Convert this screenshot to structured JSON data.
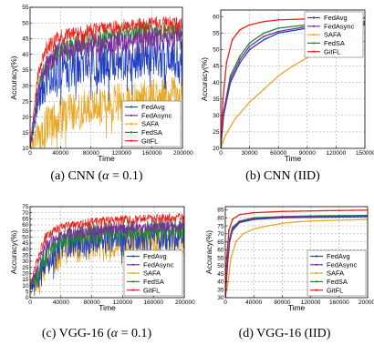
{
  "colors": {
    "FedAvg": "#1f3fbf",
    "FedAsync": "#7b2c9a",
    "SAFA": "#e5a828",
    "FedSA": "#1f8a2e",
    "GitFL": "#e8201a"
  },
  "chart_data": [
    {
      "type": "line",
      "caption": "(a) CNN (α = 0.1)",
      "caption_pre": "(a) CNN (",
      "caption_alpha": "α",
      "caption_post": " = 0.1)",
      "xlabel": "Time",
      "ylabel": "Accuracy(%)",
      "xlim": [
        0,
        200000
      ],
      "ylim": [
        10,
        55
      ],
      "xticks": [
        0,
        40000,
        80000,
        120000,
        160000,
        200000
      ],
      "xtick_labels": [
        "0",
        "40000",
        "80000",
        "120000",
        "160000",
        "200000"
      ],
      "yticks": [
        10,
        15,
        20,
        25,
        30,
        35,
        40,
        45,
        50,
        55
      ],
      "ytick_labels": [
        "10",
        "15",
        "20",
        "25",
        "30",
        "35",
        "40",
        "45",
        "50",
        "55"
      ],
      "legend_position": "lower-right",
      "noisy": true,
      "series": [
        {
          "name": "FedAvg",
          "x": [
            0,
            10000,
            20000,
            40000,
            80000,
            120000,
            160000,
            200000
          ],
          "y": [
            11,
            27,
            34,
            38,
            40,
            41,
            42,
            42
          ],
          "noise": 9
        },
        {
          "name": "FedAsync",
          "x": [
            0,
            10000,
            20000,
            40000,
            80000,
            120000,
            160000,
            200000
          ],
          "y": [
            11,
            30,
            38,
            43,
            45,
            46,
            47,
            47
          ],
          "noise": 5
        },
        {
          "name": "SAFA",
          "x": [
            0,
            10000,
            20000,
            40000,
            80000,
            120000,
            160000,
            200000
          ],
          "y": [
            11,
            16,
            20,
            24,
            26,
            28,
            29,
            30
          ],
          "noise": 9
        },
        {
          "name": "FedSA",
          "x": [
            0,
            10000,
            20000,
            40000,
            80000,
            120000,
            160000,
            200000
          ],
          "y": [
            11,
            30,
            38,
            43,
            46,
            48,
            49,
            49
          ],
          "noise": 4
        },
        {
          "name": "GitFL",
          "x": [
            0,
            10000,
            20000,
            40000,
            80000,
            120000,
            160000,
            200000
          ],
          "y": [
            11,
            34,
            43,
            47,
            49,
            50,
            51,
            51
          ],
          "noise": 3
        }
      ]
    },
    {
      "type": "line",
      "caption": "(b) CNN (IID)",
      "xlabel": "Time",
      "ylabel": "Accuracy(%)",
      "xlim": [
        0,
        150000
      ],
      "ylim": [
        20,
        62
      ],
      "xticks": [
        0,
        30000,
        60000,
        90000,
        120000,
        150000
      ],
      "xtick_labels": [
        "0",
        "30000",
        "60000",
        "90000",
        "120000",
        "150000"
      ],
      "yticks": [
        20,
        25,
        30,
        35,
        40,
        45,
        50,
        55,
        60
      ],
      "ytick_labels": [
        "20",
        "25",
        "30",
        "35",
        "40",
        "45",
        "50",
        "55",
        "60"
      ],
      "legend_position": "upper-right",
      "noisy": false,
      "series": [
        {
          "name": "FedAvg",
          "x": [
            0,
            3000,
            10000,
            20000,
            30000,
            45000,
            60000,
            90000,
            120000,
            150000
          ],
          "y": [
            20,
            30,
            40,
            46,
            50,
            53,
            55,
            56.5,
            57,
            57.5
          ],
          "noise": 0
        },
        {
          "name": "FedAsync",
          "x": [
            0,
            3000,
            10000,
            20000,
            30000,
            45000,
            60000,
            90000,
            120000,
            150000
          ],
          "y": [
            20,
            31,
            41,
            47,
            51,
            54,
            55.5,
            57,
            57.5,
            58
          ],
          "noise": 0
        },
        {
          "name": "SAFA",
          "x": [
            0,
            5000,
            15000,
            30000,
            45000,
            60000,
            75000,
            90000,
            105000,
            120000,
            135000,
            150000
          ],
          "y": [
            20,
            24,
            29,
            34,
            38,
            42,
            45,
            47.5,
            49.5,
            51,
            52,
            52.5
          ],
          "noise": 0
        },
        {
          "name": "FedSA",
          "x": [
            0,
            3000,
            10000,
            20000,
            30000,
            45000,
            60000,
            90000,
            120000,
            150000
          ],
          "y": [
            20,
            31,
            42,
            48,
            52,
            55,
            56.5,
            57.5,
            58,
            58.5
          ],
          "noise": 0
        },
        {
          "name": "GitFL",
          "x": [
            0,
            2000,
            6000,
            12000,
            20000,
            30000,
            45000,
            60000,
            90000,
            120000,
            150000
          ],
          "y": [
            20,
            34,
            46,
            53,
            56,
            57.5,
            58.5,
            59,
            59.3,
            59.5,
            59.6
          ],
          "noise": 0
        }
      ]
    },
    {
      "type": "line",
      "caption": "(c) VGG-16 (α = 0.1)",
      "caption_pre": "(c) VGG-16 (",
      "caption_alpha": "α",
      "caption_post": " = 0.1)",
      "xlabel": "Time",
      "ylabel": "Accuracy(%)",
      "xlim": [
        0,
        200000
      ],
      "ylim": [
        0,
        75
      ],
      "xticks": [
        0,
        40000,
        80000,
        120000,
        160000,
        200000
      ],
      "xtick_labels": [
        "0",
        "40000",
        "80000",
        "120000",
        "160000",
        "200000"
      ],
      "yticks": [
        0,
        5,
        10,
        15,
        20,
        25,
        30,
        35,
        40,
        45,
        50,
        55,
        60,
        65,
        70,
        75
      ],
      "ytick_labels": [
        "0",
        "5",
        "10",
        "15",
        "20",
        "25",
        "30",
        "35",
        "40",
        "45",
        "50",
        "55",
        "60",
        "65",
        "70",
        "75"
      ],
      "legend_position": "lower-right",
      "noisy": true,
      "series": [
        {
          "name": "FedAvg",
          "x": [
            0,
            10000,
            20000,
            40000,
            80000,
            120000,
            160000,
            200000
          ],
          "y": [
            10,
            22,
            35,
            48,
            53,
            55,
            56,
            57
          ],
          "noise": 16
        },
        {
          "name": "FedAsync",
          "x": [
            0,
            10000,
            20000,
            40000,
            80000,
            120000,
            160000,
            200000
          ],
          "y": [
            10,
            28,
            45,
            55,
            58,
            60,
            61,
            62
          ],
          "noise": 7
        },
        {
          "name": "SAFA",
          "x": [
            0,
            10000,
            20000,
            40000,
            80000,
            120000,
            160000,
            200000
          ],
          "y": [
            10,
            20,
            32,
            45,
            50,
            52,
            53,
            54
          ],
          "noise": 18
        },
        {
          "name": "FedSA",
          "x": [
            0,
            10000,
            20000,
            40000,
            80000,
            120000,
            160000,
            200000
          ],
          "y": [
            10,
            25,
            40,
            52,
            57,
            59,
            60,
            61
          ],
          "noise": 12
        },
        {
          "name": "GitFL",
          "x": [
            0,
            10000,
            20000,
            40000,
            80000,
            120000,
            160000,
            200000
          ],
          "y": [
            10,
            35,
            52,
            60,
            64,
            66,
            67,
            68
          ],
          "noise": 5
        }
      ]
    },
    {
      "type": "line",
      "caption": "(d) VGG-16 (IID)",
      "xlabel": "Time",
      "ylabel": "Accuracy(%)",
      "xlim": [
        0,
        200000
      ],
      "ylim": [
        30,
        87
      ],
      "xticks": [
        0,
        40000,
        80000,
        120000,
        160000,
        200000
      ],
      "xtick_labels": [
        "0",
        "40000",
        "80000",
        "120000",
        "160000",
        "200000"
      ],
      "yticks": [
        30,
        35,
        40,
        45,
        50,
        55,
        60,
        65,
        70,
        75,
        80,
        85
      ],
      "ytick_labels": [
        "30",
        "35",
        "40",
        "45",
        "50",
        "55",
        "60",
        "65",
        "70",
        "75",
        "80",
        "85"
      ],
      "legend_position": "lower-right",
      "noisy": false,
      "series": [
        {
          "name": "FedAvg",
          "x": [
            0,
            3000,
            6000,
            10000,
            20000,
            40000,
            80000,
            120000,
            160000,
            200000
          ],
          "y": [
            30,
            50,
            65,
            72,
            77,
            79,
            80,
            80.3,
            80.5,
            80.7
          ],
          "noise": 0
        },
        {
          "name": "FedAsync",
          "x": [
            0,
            3000,
            6000,
            10000,
            20000,
            40000,
            80000,
            120000,
            160000,
            200000
          ],
          "y": [
            30,
            52,
            66,
            73,
            77.5,
            79.5,
            80.5,
            80.8,
            81,
            81.2
          ],
          "noise": 0
        },
        {
          "name": "SAFA",
          "x": [
            0,
            4000,
            8000,
            15000,
            25000,
            40000,
            60000,
            80000,
            100000,
            120000,
            160000,
            200000
          ],
          "y": [
            30,
            40,
            55,
            65,
            70,
            73,
            75,
            76.5,
            77.5,
            78,
            78.5,
            79
          ],
          "noise": 0
        },
        {
          "name": "FedSA",
          "x": [
            0,
            3000,
            6000,
            10000,
            20000,
            40000,
            80000,
            120000,
            160000,
            200000
          ],
          "y": [
            30,
            53,
            67,
            74,
            78,
            80,
            80.8,
            81.2,
            81.4,
            81.5
          ],
          "noise": 0
        },
        {
          "name": "GitFL",
          "x": [
            0,
            2000,
            5000,
            10000,
            20000,
            40000,
            80000,
            120000,
            160000,
            200000
          ],
          "y": [
            30,
            55,
            72,
            79,
            82,
            83.2,
            84,
            84.3,
            84.6,
            84.8
          ],
          "noise": 0
        }
      ]
    }
  ]
}
